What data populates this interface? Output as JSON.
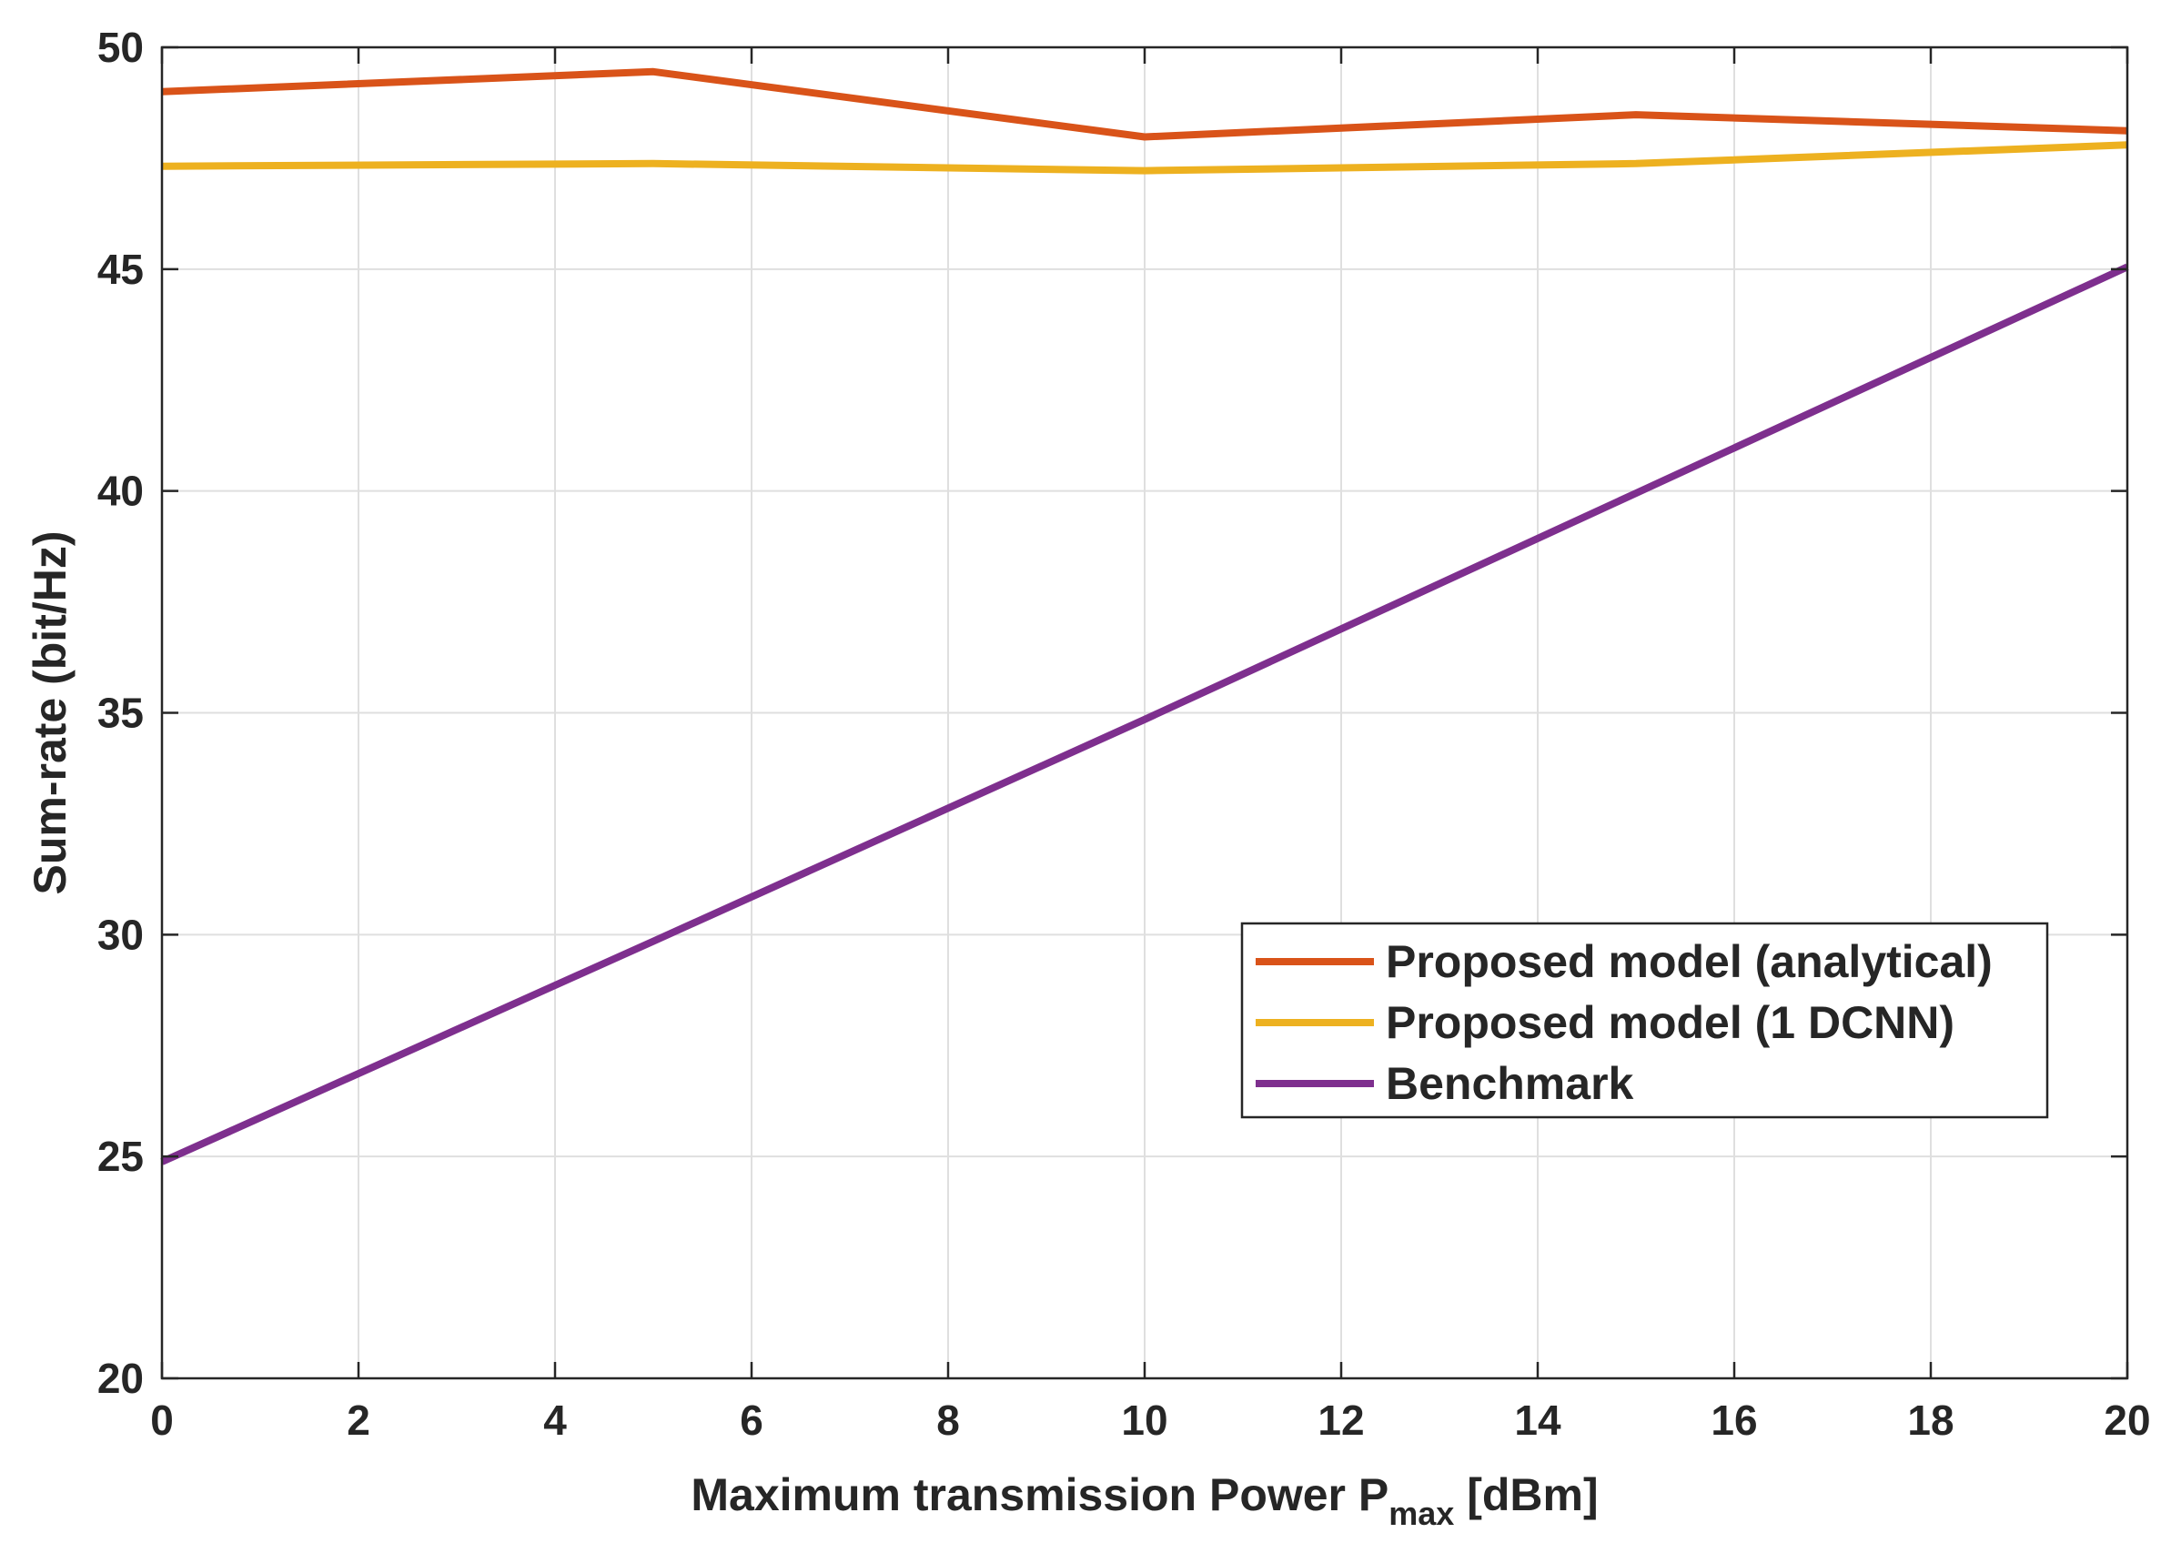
{
  "chart_data": {
    "type": "line",
    "title": "",
    "xlabel": "Maximum transmission Power P",
    "xlabel_subscript": "max",
    "xlabel_suffix": " [dBm]",
    "ylabel": "Sum-rate (bit/Hz)",
    "xlim": [
      0,
      20
    ],
    "ylim": [
      20,
      50
    ],
    "xticks": [
      0,
      2,
      4,
      6,
      8,
      10,
      12,
      14,
      16,
      18,
      20
    ],
    "yticks": [
      20,
      25,
      30,
      35,
      40,
      45,
      50
    ],
    "grid": true,
    "legend_position": "center-right",
    "series": [
      {
        "name": "Proposed model (analytical)",
        "color": "#D95319",
        "x": [
          0,
          5,
          10,
          15,
          20
        ],
        "y": [
          49.0,
          49.45,
          47.98,
          48.48,
          48.12
        ]
      },
      {
        "name": "Proposed model (1 DCNN)",
        "color": "#EDB120",
        "x": [
          0,
          5,
          10,
          15,
          20
        ],
        "y": [
          47.32,
          47.38,
          47.22,
          47.38,
          47.8
        ]
      },
      {
        "name": "Benchmark",
        "color": "#7E2F8E",
        "x": [
          0,
          5,
          10,
          15,
          20
        ],
        "y": [
          24.88,
          29.85,
          34.85,
          39.95,
          45.05
        ]
      }
    ]
  }
}
